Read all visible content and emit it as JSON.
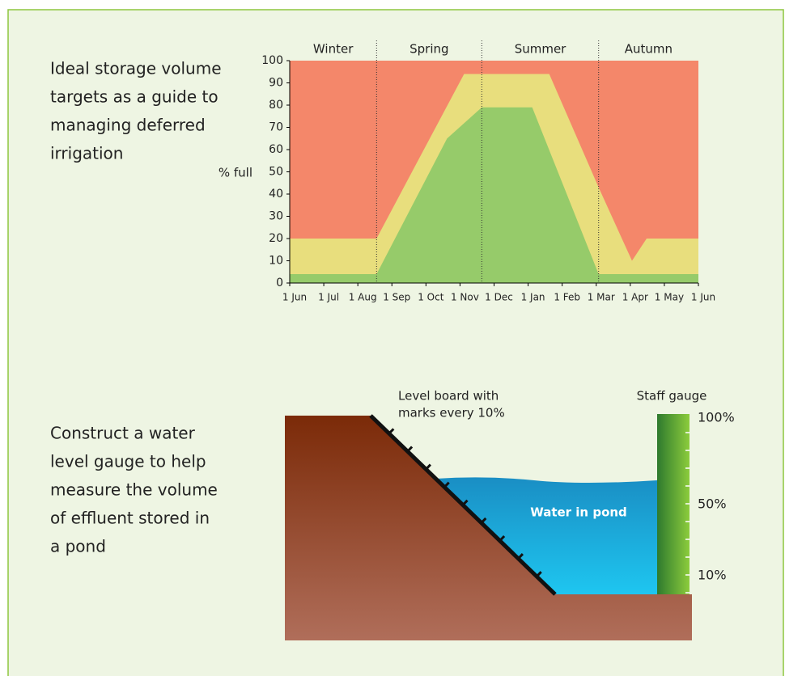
{
  "chart_data": {
    "type": "area",
    "ylabel": "% full",
    "ylim": [
      0,
      100
    ],
    "yticks": [
      0,
      10,
      20,
      30,
      40,
      50,
      60,
      70,
      80,
      90,
      100
    ],
    "xlim": [
      0,
      12
    ],
    "xticks": [
      {
        "value": 0,
        "label": "1 Jun"
      },
      {
        "value": 1,
        "label": "1 Jul"
      },
      {
        "value": 2,
        "label": "1 Aug"
      },
      {
        "value": 3,
        "label": "1 Sep"
      },
      {
        "value": 4,
        "label": "1 Oct"
      },
      {
        "value": 5,
        "label": "1 Nov"
      },
      {
        "value": 6,
        "label": "1 Dec"
      },
      {
        "value": 7,
        "label": "1 Jan"
      },
      {
        "value": 8,
        "label": "1 Feb"
      },
      {
        "value": 9,
        "label": "1 Mar"
      },
      {
        "value": 10,
        "label": "1 Apr"
      },
      {
        "value": 11,
        "label": "1 May"
      },
      {
        "value": 12,
        "label": "1 Jun"
      }
    ],
    "background_color": "#f4876a",
    "series": [
      {
        "color": "#e8de7d",
        "x": [
          0,
          2.55,
          5.12,
          7.62,
          9.07,
          10.05,
          10.48,
          12
        ],
        "values": [
          20,
          20,
          94,
          94,
          43,
          10,
          20,
          20
        ]
      },
      {
        "color": "#96cb6a",
        "x": [
          0,
          2.55,
          4.62,
          5.64,
          7.12,
          9.07,
          12
        ],
        "values": [
          4,
          4,
          65,
          79,
          79,
          4,
          4
        ]
      }
    ],
    "seasons": [
      {
        "name": "Winter",
        "start": 0,
        "end": 2.55
      },
      {
        "name": "Spring",
        "start": 2.55,
        "end": 5.64
      },
      {
        "name": "Summer",
        "start": 5.64,
        "end": 9.07
      },
      {
        "name": "Autumn",
        "start": 9.07,
        "end": 12
      }
    ]
  },
  "intro_text": [
    "Ideal storage volume",
    "targets as a guide to",
    "managing deferred",
    "irrigation"
  ],
  "diagram": {
    "text": [
      "Construct a water",
      "level gauge to help",
      "measure the volume",
      "of effluent stored in",
      "a pond"
    ],
    "level_board_label": [
      "Level board with",
      "marks every 10%"
    ],
    "staff_gauge_label": "Staff gauge",
    "water_label": "Water in pond",
    "gauge_marks": [
      "100%",
      "50%",
      "10%"
    ]
  }
}
